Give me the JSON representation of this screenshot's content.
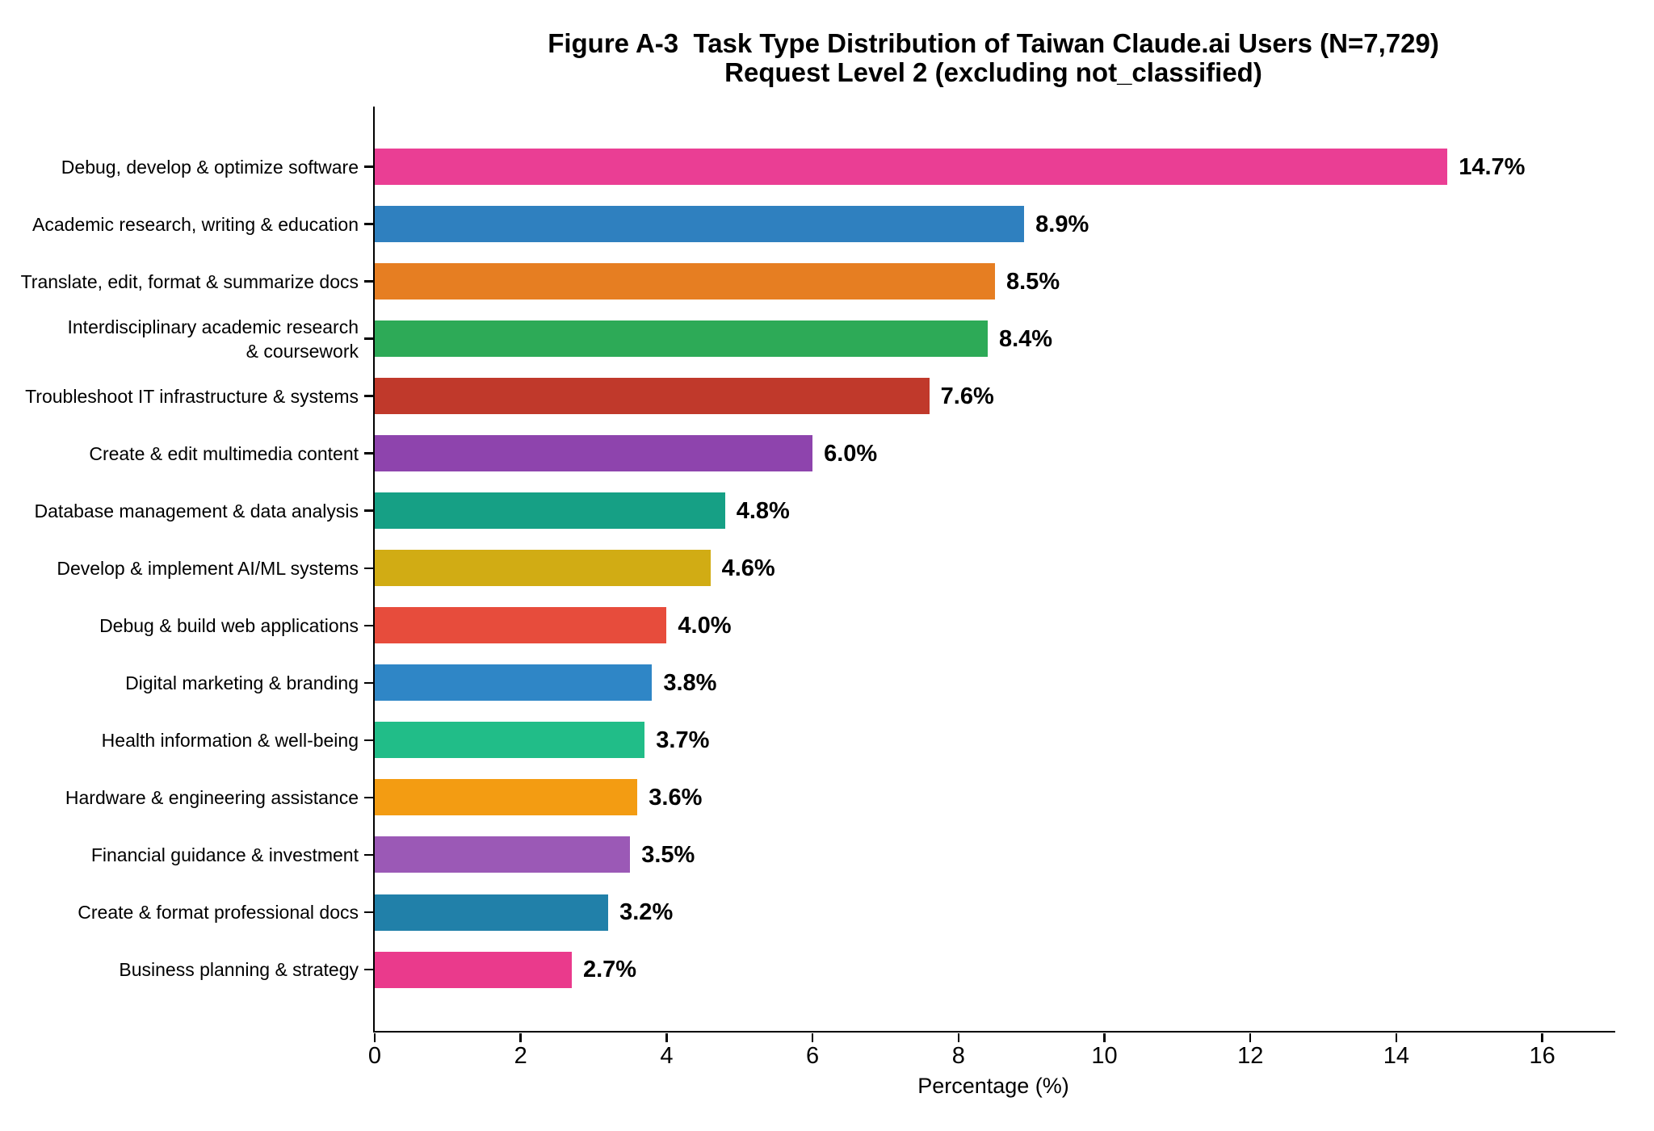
{
  "chart_data": {
    "type": "bar",
    "orientation": "horizontal",
    "title": "Figure A-3  Task Type Distribution of Taiwan Claude.ai Users (N=7,729)",
    "subtitle": "Request Level 2 (excluding not_classified)",
    "xlabel": "Percentage (%)",
    "xlim": [
      0,
      17
    ],
    "x_ticks": [
      "0",
      "2",
      "4",
      "6",
      "8",
      "10",
      "12",
      "14",
      "16"
    ],
    "grid": false,
    "legend": false,
    "categories": [
      "Debug, develop & optimize software",
      "Academic research, writing & education",
      "Translate, edit, format & summarize docs",
      "Interdisciplinary academic research\n& coursework",
      "Troubleshoot IT infrastructure & systems",
      "Create & edit multimedia content",
      "Database management & data analysis",
      "Develop & implement AI/ML systems",
      "Debug & build web applications",
      "Digital marketing & branding",
      "Health information & well-being",
      "Hardware & engineering assistance",
      "Financial guidance & investment",
      "Create & format professional docs",
      "Business planning & strategy"
    ],
    "values": [
      14.7,
      8.9,
      8.5,
      8.4,
      7.6,
      6.0,
      4.8,
      4.6,
      4.0,
      3.8,
      3.7,
      3.6,
      3.5,
      3.2,
      2.7
    ],
    "value_labels": [
      "14.7%",
      "8.9%",
      "8.5%",
      "8.4%",
      "7.6%",
      "6.0%",
      "4.8%",
      "4.6%",
      "4.0%",
      "3.8%",
      "3.7%",
      "3.6%",
      "3.5%",
      "3.2%",
      "2.7%"
    ],
    "bar_colors": [
      "#ea3e94",
      "#2f80bf",
      "#e67e22",
      "#2daa57",
      "#c0392b",
      "#8e44ad",
      "#16a085",
      "#d1ac14",
      "#e74c3c",
      "#2f86c6",
      "#21bd88",
      "#f39c12",
      "#9b59b6",
      "#2180a9",
      "#ea3a8c"
    ],
    "axis_color": "#000000",
    "label_color": "#000000"
  }
}
